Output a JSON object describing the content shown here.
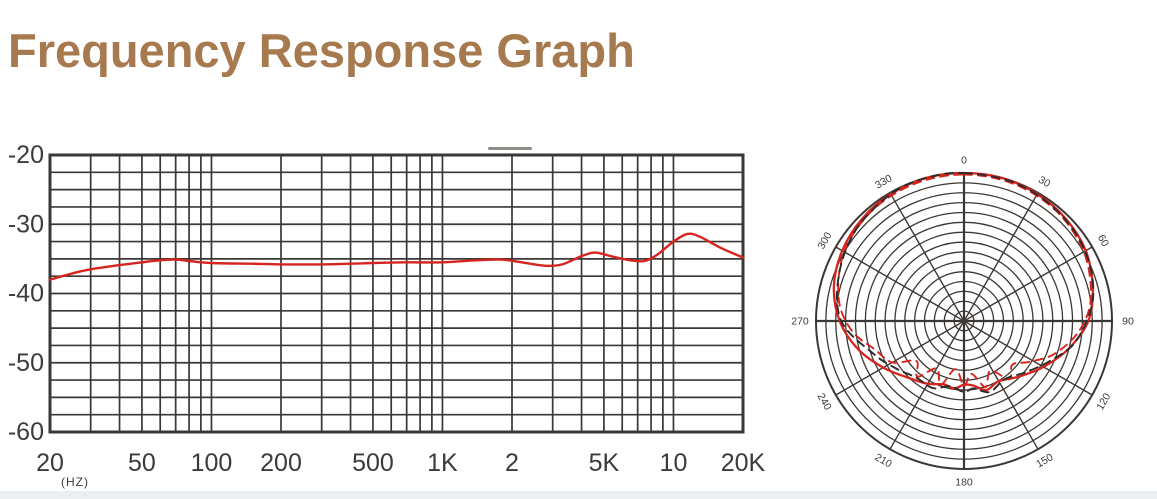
{
  "page": {
    "title": "Frequency Response Graph",
    "title_color": "#A6794E",
    "background": "#FFFFFF",
    "footer_bar_color": "#ECEFF1"
  },
  "chart_data": [
    {
      "type": "line",
      "name": "frequency-response",
      "xlabel": "(HZ)",
      "x_scale": "log",
      "x_range": [
        20,
        20000
      ],
      "y_range": [
        -60,
        -20
      ],
      "grid": true,
      "grid_color": "#3B3734",
      "y_ticks": [
        -20,
        -30,
        -40,
        -50,
        -60
      ],
      "y_minor_step": 2.5,
      "x_ticks": [
        {
          "f": 20,
          "label": "20"
        },
        {
          "f": 50,
          "label": "50"
        },
        {
          "f": 100,
          "label": "100"
        },
        {
          "f": 200,
          "label": "200"
        },
        {
          "f": 500,
          "label": "500"
        },
        {
          "f": 1000,
          "label": "1K"
        },
        {
          "f": 2000,
          "label": "2"
        },
        {
          "f": 5000,
          "label": "5K"
        },
        {
          "f": 10000,
          "label": "10"
        },
        {
          "f": 20000,
          "label": "20K"
        }
      ],
      "x_gridlines": [
        20,
        30,
        40,
        50,
        60,
        70,
        80,
        90,
        100,
        200,
        300,
        400,
        500,
        600,
        700,
        800,
        900,
        1000,
        2000,
        3000,
        4000,
        5000,
        6000,
        7000,
        8000,
        9000,
        10000,
        20000
      ],
      "series": [
        {
          "name": "response-curve",
          "color": "#D6241F",
          "points": [
            [
              20,
              -38.0
            ],
            [
              25,
              -37.1
            ],
            [
              30,
              -36.5
            ],
            [
              40,
              -35.9
            ],
            [
              50,
              -35.5
            ],
            [
              60,
              -35.2
            ],
            [
              70,
              -35.1
            ],
            [
              80,
              -35.3
            ],
            [
              100,
              -35.6
            ],
            [
              150,
              -35.7
            ],
            [
              200,
              -35.8
            ],
            [
              300,
              -35.8
            ],
            [
              400,
              -35.7
            ],
            [
              500,
              -35.6
            ],
            [
              700,
              -35.5
            ],
            [
              1000,
              -35.5
            ],
            [
              1400,
              -35.2
            ],
            [
              1800,
              -35.1
            ],
            [
              2200,
              -35.5
            ],
            [
              2800,
              -36.0
            ],
            [
              3300,
              -35.8
            ],
            [
              4000,
              -34.6
            ],
            [
              4600,
              -34.1
            ],
            [
              5500,
              -34.7
            ],
            [
              6500,
              -35.2
            ],
            [
              7500,
              -35.3
            ],
            [
              8500,
              -34.4
            ],
            [
              10000,
              -32.5
            ],
            [
              11500,
              -31.4
            ],
            [
              13000,
              -31.8
            ],
            [
              16000,
              -33.4
            ],
            [
              20000,
              -34.8
            ]
          ]
        }
      ]
    },
    {
      "type": "polar",
      "name": "polar-pattern",
      "rings": 15,
      "angle_step_deg": 30,
      "angle_labels": [
        "0",
        "30",
        "60",
        "90",
        "120",
        "150",
        "180",
        "210",
        "240",
        "270",
        "300",
        "330"
      ],
      "grid_color": "#3B3734",
      "series": [
        {
          "name": "pattern-solid-red",
          "color": "#D6241F",
          "style": "solid",
          "points": [
            [
              0,
              1.0
            ],
            [
              15,
              1.0
            ],
            [
              30,
              0.99
            ],
            [
              45,
              0.975
            ],
            [
              60,
              0.95
            ],
            [
              75,
              0.9
            ],
            [
              90,
              0.84
            ],
            [
              105,
              0.73
            ],
            [
              120,
              0.62
            ],
            [
              135,
              0.53
            ],
            [
              150,
              0.47
            ],
            [
              162,
              0.49
            ],
            [
              172,
              0.44
            ],
            [
              180,
              0.43
            ],
            [
              188,
              0.46
            ],
            [
              198,
              0.45
            ],
            [
              210,
              0.49
            ],
            [
              225,
              0.54
            ],
            [
              240,
              0.63
            ],
            [
              255,
              0.74
            ],
            [
              270,
              0.84
            ],
            [
              285,
              0.91
            ],
            [
              300,
              0.95
            ],
            [
              315,
              0.975
            ],
            [
              330,
              0.99
            ],
            [
              345,
              1.0
            ]
          ]
        },
        {
          "name": "pattern-dashed-red",
          "color": "#D6241F",
          "style": "dashed",
          "points": [
            [
              0,
              0.99
            ],
            [
              20,
              0.985
            ],
            [
              40,
              0.97
            ],
            [
              60,
              0.935
            ],
            [
              80,
              0.87
            ],
            [
              95,
              0.78
            ],
            [
              110,
              0.65
            ],
            [
              122,
              0.52
            ],
            [
              132,
              0.44
            ],
            [
              142,
              0.5
            ],
            [
              152,
              0.38
            ],
            [
              162,
              0.47
            ],
            [
              172,
              0.36
            ],
            [
              180,
              0.44
            ],
            [
              190,
              0.33
            ],
            [
              200,
              0.46
            ],
            [
              210,
              0.37
            ],
            [
              220,
              0.49
            ],
            [
              230,
              0.42
            ],
            [
              240,
              0.56
            ],
            [
              252,
              0.63
            ],
            [
              265,
              0.76
            ],
            [
              280,
              0.86
            ],
            [
              300,
              0.935
            ],
            [
              320,
              0.97
            ],
            [
              340,
              0.985
            ]
          ]
        },
        {
          "name": "pattern-dashed-black",
          "color": "#2E2B29",
          "style": "dashed",
          "points": [
            [
              0,
              1.0
            ],
            [
              20,
              0.995
            ],
            [
              40,
              0.975
            ],
            [
              60,
              0.945
            ],
            [
              80,
              0.885
            ],
            [
              100,
              0.77
            ],
            [
              115,
              0.64
            ],
            [
              130,
              0.54
            ],
            [
              145,
              0.48
            ],
            [
              160,
              0.51
            ],
            [
              172,
              0.46
            ],
            [
              180,
              0.48
            ],
            [
              192,
              0.45
            ],
            [
              205,
              0.5
            ],
            [
              220,
              0.5
            ],
            [
              235,
              0.56
            ],
            [
              250,
              0.65
            ],
            [
              270,
              0.83
            ],
            [
              290,
              0.9
            ],
            [
              310,
              0.955
            ],
            [
              330,
              0.99
            ],
            [
              345,
              1.0
            ]
          ]
        }
      ]
    }
  ]
}
